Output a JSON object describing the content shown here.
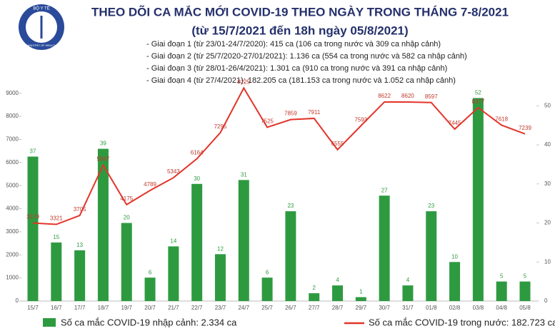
{
  "logo": {
    "top": "BỘ Y TẾ",
    "bottom": "MINISTRY OF HEALTH"
  },
  "chart_data": {
    "type": "combo",
    "title": "THEO DÕI CA MẮC MỚI COVID-19 THEO NGÀY TRONG THÁNG 7-8/2021",
    "subtitle": "(từ 15/7/2021 đến 18h ngày 05/8/2021)",
    "annotations": [
      "- Giai đoạn 1 (từ 23/01-24/7/2020): 415 ca (106 ca trong nước và 309 ca nhập cảnh)",
      "- Giai đoạn 2 (từ 25/7/2020-27/01/2021): 1.136 ca (554 ca trong nước và 582 ca nhập cảnh)",
      "- Giai đoạn 3 (từ 28/01-26/4/2021): 1.301 ca (910 ca trong nước và 391 ca nhập cảnh)",
      "- Giai đoạn 4 (từ 27/4/2021): 182.205 ca (181.153 ca trong nước và 1.052 ca nhập cảnh)"
    ],
    "categories": [
      "15/7",
      "16/7",
      "17/7",
      "18/7",
      "19/7",
      "20/7",
      "21/7",
      "22/7",
      "23/7",
      "24/7",
      "25/7",
      "26/7",
      "27/7",
      "28/7",
      "29/7",
      "30/7",
      "31/7",
      "01/8",
      "02/8",
      "03/8",
      "04/8",
      "05/8"
    ],
    "series": [
      {
        "name": "Số ca mắc COVID-19 nhập cảnh: 2.334 ca",
        "type": "bar",
        "axis": "y2",
        "color": "#2e9a40",
        "values": [
          37,
          15,
          13,
          39,
          20,
          6,
          14,
          30,
          12,
          31,
          6,
          23,
          2,
          4,
          1,
          27,
          4,
          23,
          10,
          52,
          5,
          5
        ]
      },
      {
        "name": "Số ca mắc COVID-19 trong nước: 182.723 ca",
        "type": "line",
        "axis": "y",
        "color": "#e3342a",
        "values": [
          3379,
          3321,
          3705,
          5887,
          4175,
          4789,
          5343,
          6164,
          7295,
          9225,
          7525,
          7859,
          7911,
          6555,
          7593,
          8622,
          8620,
          8597,
          7445,
          8377,
          7618,
          7239
        ]
      }
    ],
    "ylim": [
      0,
      9300
    ],
    "yticks": [
      0,
      1000,
      2000,
      3000,
      4000,
      5000,
      6000,
      7000,
      8000,
      9000
    ],
    "y2lim": [
      0,
      55
    ],
    "y2ticks": [
      0,
      10,
      20,
      30,
      40,
      50
    ]
  }
}
